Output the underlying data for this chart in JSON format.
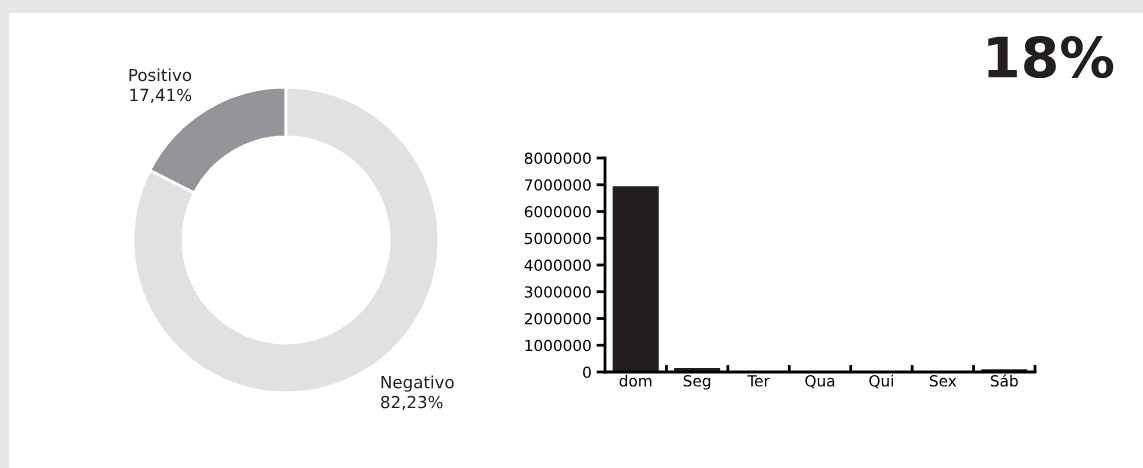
{
  "chart_data": [
    {
      "type": "donut",
      "categories": [
        "Positivo",
        "Negativo"
      ],
      "values": [
        17.41,
        82.23
      ],
      "value_labels": [
        "17,41%",
        "82,23%"
      ],
      "colors": [
        "#939598",
        "#e1e1e3"
      ]
    },
    {
      "type": "bar",
      "categories": [
        "dom",
        "Seg",
        "Ter",
        "Qua",
        "Qui",
        "Sex",
        "Sáb"
      ],
      "values": [
        6940000,
        150000,
        0,
        0,
        0,
        0,
        100000
      ],
      "color": "#231f20",
      "ylim": [
        0,
        8000000
      ],
      "yticks": [
        0,
        1000000,
        2000000,
        3000000,
        4000000,
        5000000,
        6000000,
        7000000,
        8000000
      ],
      "grid": false,
      "annotations": [
        "18%"
      ]
    }
  ]
}
